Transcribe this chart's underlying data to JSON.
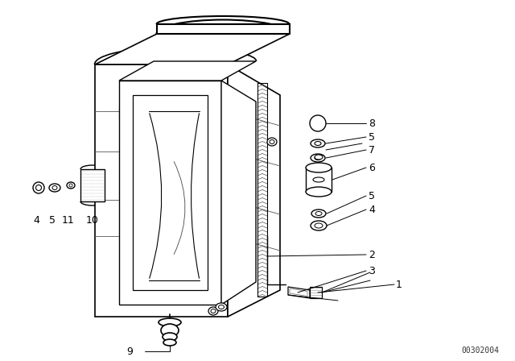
{
  "bg_color": "#ffffff",
  "line_color": "#000000",
  "diagram_code": "00302004",
  "figsize": [
    6.4,
    4.48
  ],
  "dpi": 100,
  "label_fontsize": 9,
  "code_fontsize": 7
}
